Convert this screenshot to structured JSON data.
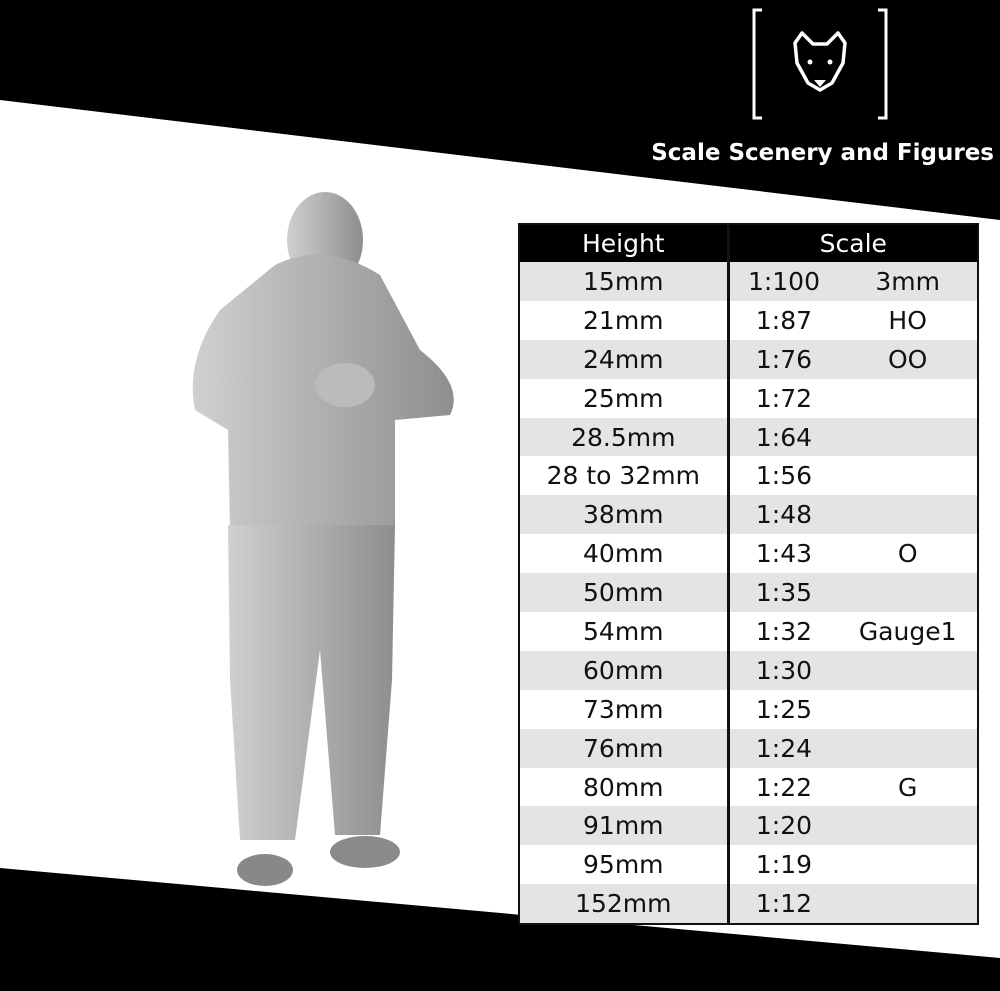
{
  "brand": {
    "name": "Scale Scenery and Figures",
    "logo": "wolf-head-icon",
    "colors": {
      "black": "#000000",
      "white": "#ffffff",
      "row_alt": "#e4e4e4",
      "figure": "#b5b5b5"
    }
  },
  "table": {
    "headers": [
      "Height",
      "Scale"
    ],
    "rows": [
      {
        "height": "15mm",
        "ratio": "1:100",
        "gauge": "3mm"
      },
      {
        "height": "21mm",
        "ratio": "1:87",
        "gauge": "HO"
      },
      {
        "height": "24mm",
        "ratio": "1:76",
        "gauge": "OO"
      },
      {
        "height": "25mm",
        "ratio": "1:72",
        "gauge": ""
      },
      {
        "height": "28.5mm",
        "ratio": "1:64",
        "gauge": ""
      },
      {
        "height": "28 to 32mm",
        "ratio": "1:56",
        "gauge": ""
      },
      {
        "height": "38mm",
        "ratio": "1:48",
        "gauge": ""
      },
      {
        "height": "40mm",
        "ratio": "1:43",
        "gauge": "O"
      },
      {
        "height": "50mm",
        "ratio": "1:35",
        "gauge": ""
      },
      {
        "height": "54mm",
        "ratio": "1:32",
        "gauge": "Gauge1"
      },
      {
        "height": "60mm",
        "ratio": "1:30",
        "gauge": ""
      },
      {
        "height": "73mm",
        "ratio": "1:25",
        "gauge": ""
      },
      {
        "height": "76mm",
        "ratio": "1:24",
        "gauge": ""
      },
      {
        "height": "80mm",
        "ratio": "1:22",
        "gauge": "G"
      },
      {
        "height": "91mm",
        "ratio": "1:20",
        "gauge": ""
      },
      {
        "height": "95mm",
        "ratio": "1:19",
        "gauge": ""
      },
      {
        "height": "152mm",
        "ratio": "1:12",
        "gauge": ""
      }
    ]
  }
}
